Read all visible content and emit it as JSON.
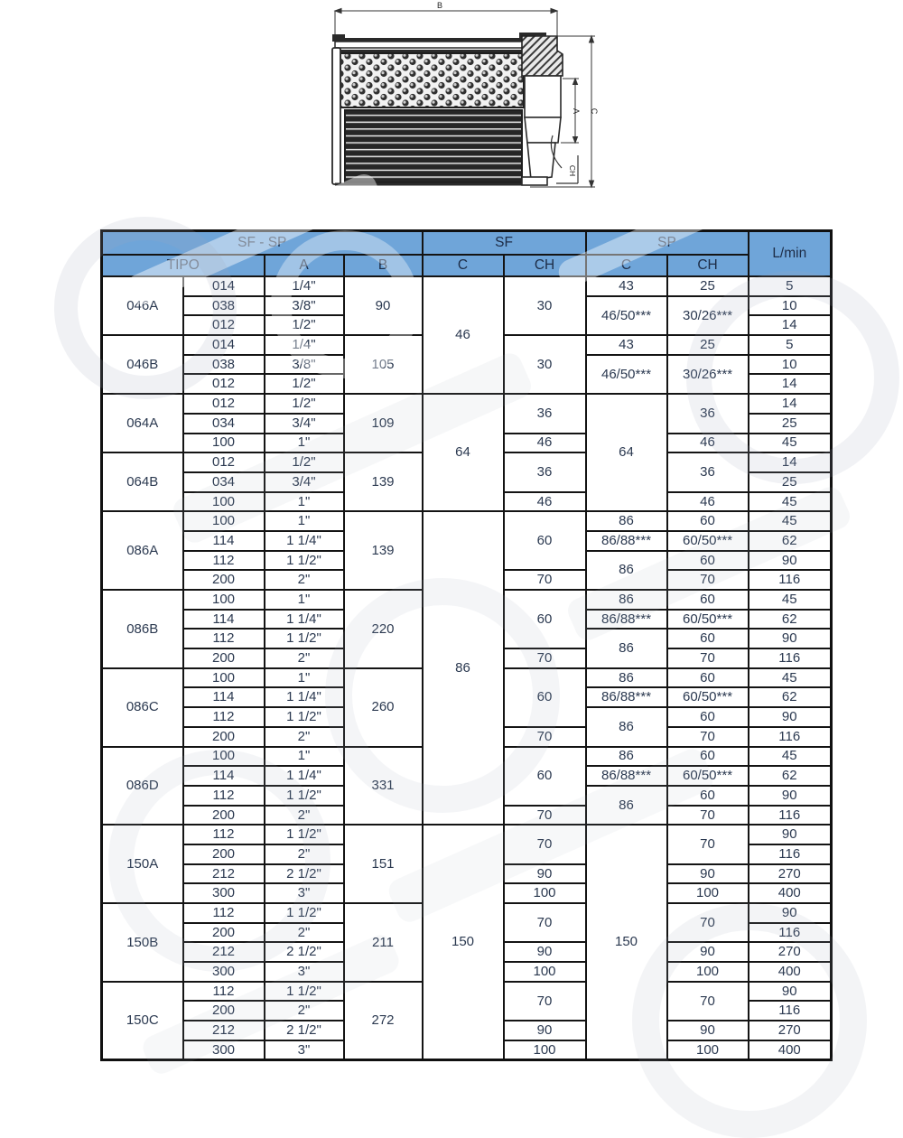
{
  "drawing": {
    "labels": {
      "b": "B",
      "a": "A",
      "c": "C",
      "ch": "CH"
    }
  },
  "table": {
    "headers": {
      "group_sfsp": "SF - SP",
      "group_sf": "SF",
      "group_sp": "SP",
      "lmin": "L/min",
      "tipo": "TIPO",
      "a": "A",
      "b": "B",
      "c_sf": "C",
      "ch_sf": "CH",
      "c_sp": "C",
      "ch_sp": "CH"
    },
    "columns": {
      "tipo": [
        [
          "046A",
          3
        ],
        [
          "046B",
          3
        ],
        [
          "064A",
          3
        ],
        [
          "064B",
          3
        ],
        [
          "086A",
          4
        ],
        [
          "086B",
          4
        ],
        [
          "086C",
          4
        ],
        [
          "086D",
          4
        ],
        [
          "150A",
          4
        ],
        [
          "150B",
          4
        ],
        [
          "150C",
          4
        ]
      ],
      "code": [
        "014",
        "038",
        "012",
        "014",
        "038",
        "012",
        "012",
        "034",
        "100",
        "012",
        "034",
        "100",
        "100",
        "114",
        "112",
        "200",
        "100",
        "114",
        "112",
        "200",
        "100",
        "114",
        "112",
        "200",
        "100",
        "114",
        "112",
        "200",
        "112",
        "200",
        "212",
        "300",
        "112",
        "200",
        "212",
        "300",
        "112",
        "200",
        "212",
        "300"
      ],
      "a": [
        "1/4\"",
        "3/8\"",
        "1/2\"",
        "1/4\"",
        "3/8\"",
        "1/2\"",
        "1/2\"",
        "3/4\"",
        "1\"",
        "1/2\"",
        "3/4\"",
        "1\"",
        "1\"",
        "1 1/4\"",
        "1 1/2\"",
        "2\"",
        "1\"",
        "1 1/4\"",
        "1 1/2\"",
        "2\"",
        "1\"",
        "1 1/4\"",
        "1 1/2\"",
        "2\"",
        "1\"",
        "1 1/4\"",
        "1 1/2\"",
        "2\"",
        "1 1/2\"",
        "2\"",
        "2 1/2\"",
        "3\"",
        "1 1/2\"",
        "2\"",
        "2 1/2\"",
        "3\"",
        "1 1/2\"",
        "2\"",
        "2 1/2\"",
        "3\""
      ],
      "b": [
        [
          "90",
          3
        ],
        [
          "105",
          3
        ],
        [
          "109",
          3
        ],
        [
          "139",
          3
        ],
        [
          "139",
          4
        ],
        [
          "220",
          4
        ],
        [
          "260",
          4
        ],
        [
          "331",
          4
        ],
        [
          "151",
          4
        ],
        [
          "211",
          4
        ],
        [
          "272",
          4
        ]
      ],
      "sf_c": [
        [
          "46",
          6
        ],
        [
          "64",
          6
        ],
        [
          "86",
          16
        ],
        [
          "150",
          12
        ]
      ],
      "sf_ch": [
        [
          "30",
          3
        ],
        [
          "30",
          3
        ],
        [
          "36",
          2
        ],
        [
          "46",
          1
        ],
        [
          "36",
          2
        ],
        [
          "46",
          1
        ],
        [
          "60",
          3
        ],
        [
          "70",
          1
        ],
        [
          "60",
          3
        ],
        [
          "70",
          1
        ],
        [
          "60",
          3
        ],
        [
          "70",
          1
        ],
        [
          "60",
          3
        ],
        [
          "70",
          1
        ],
        [
          "70",
          2
        ],
        [
          "90",
          1
        ],
        [
          "100",
          1
        ],
        [
          "70",
          2
        ],
        [
          "90",
          1
        ],
        [
          "100",
          1
        ],
        [
          "70",
          2
        ],
        [
          "90",
          1
        ],
        [
          "100",
          1
        ]
      ],
      "sp_c": [
        [
          "43",
          1
        ],
        [
          "46/50***",
          2
        ],
        [
          "43",
          1
        ],
        [
          "46/50***",
          2
        ],
        [
          "64",
          6
        ],
        [
          "86",
          1
        ],
        [
          "86/88***",
          1
        ],
        [
          "86",
          2
        ],
        [
          "86",
          1
        ],
        [
          "86/88***",
          1
        ],
        [
          "86",
          2
        ],
        [
          "86",
          1
        ],
        [
          "86/88***",
          1
        ],
        [
          "86",
          2
        ],
        [
          "86",
          1
        ],
        [
          "86/88***",
          1
        ],
        [
          "86",
          2
        ],
        [
          "150",
          12
        ]
      ],
      "sp_ch": [
        [
          "25",
          1
        ],
        [
          "30/26***",
          2
        ],
        [
          "25",
          1
        ],
        [
          "30/26***",
          2
        ],
        [
          "36",
          2
        ],
        [
          "46",
          1
        ],
        [
          "36",
          2
        ],
        [
          "46",
          1
        ],
        [
          "60",
          1
        ],
        [
          "60/50***",
          1
        ],
        [
          "60",
          1
        ],
        [
          "70",
          1
        ],
        [
          "60",
          1
        ],
        [
          "60/50***",
          1
        ],
        [
          "60",
          1
        ],
        [
          "70",
          1
        ],
        [
          "60",
          1
        ],
        [
          "60/50***",
          1
        ],
        [
          "60",
          1
        ],
        [
          "70",
          1
        ],
        [
          "60",
          1
        ],
        [
          "60/50***",
          1
        ],
        [
          "60",
          1
        ],
        [
          "70",
          1
        ],
        [
          "70",
          2
        ],
        [
          "90",
          1
        ],
        [
          "100",
          1
        ],
        [
          "70",
          2
        ],
        [
          "90",
          1
        ],
        [
          "100",
          1
        ],
        [
          "70",
          2
        ],
        [
          "90",
          1
        ],
        [
          "100",
          1
        ]
      ],
      "lmin": [
        "5",
        "10",
        "14",
        "5",
        "10",
        "14",
        "14",
        "25",
        "45",
        "14",
        "25",
        "45",
        "45",
        "62",
        "90",
        "116",
        "45",
        "62",
        "90",
        "116",
        "45",
        "62",
        "90",
        "116",
        "45",
        "62",
        "90",
        "116",
        "90",
        "116",
        "270",
        "400",
        "90",
        "116",
        "270",
        "400",
        "90",
        "116",
        "270",
        "400"
      ]
    }
  }
}
